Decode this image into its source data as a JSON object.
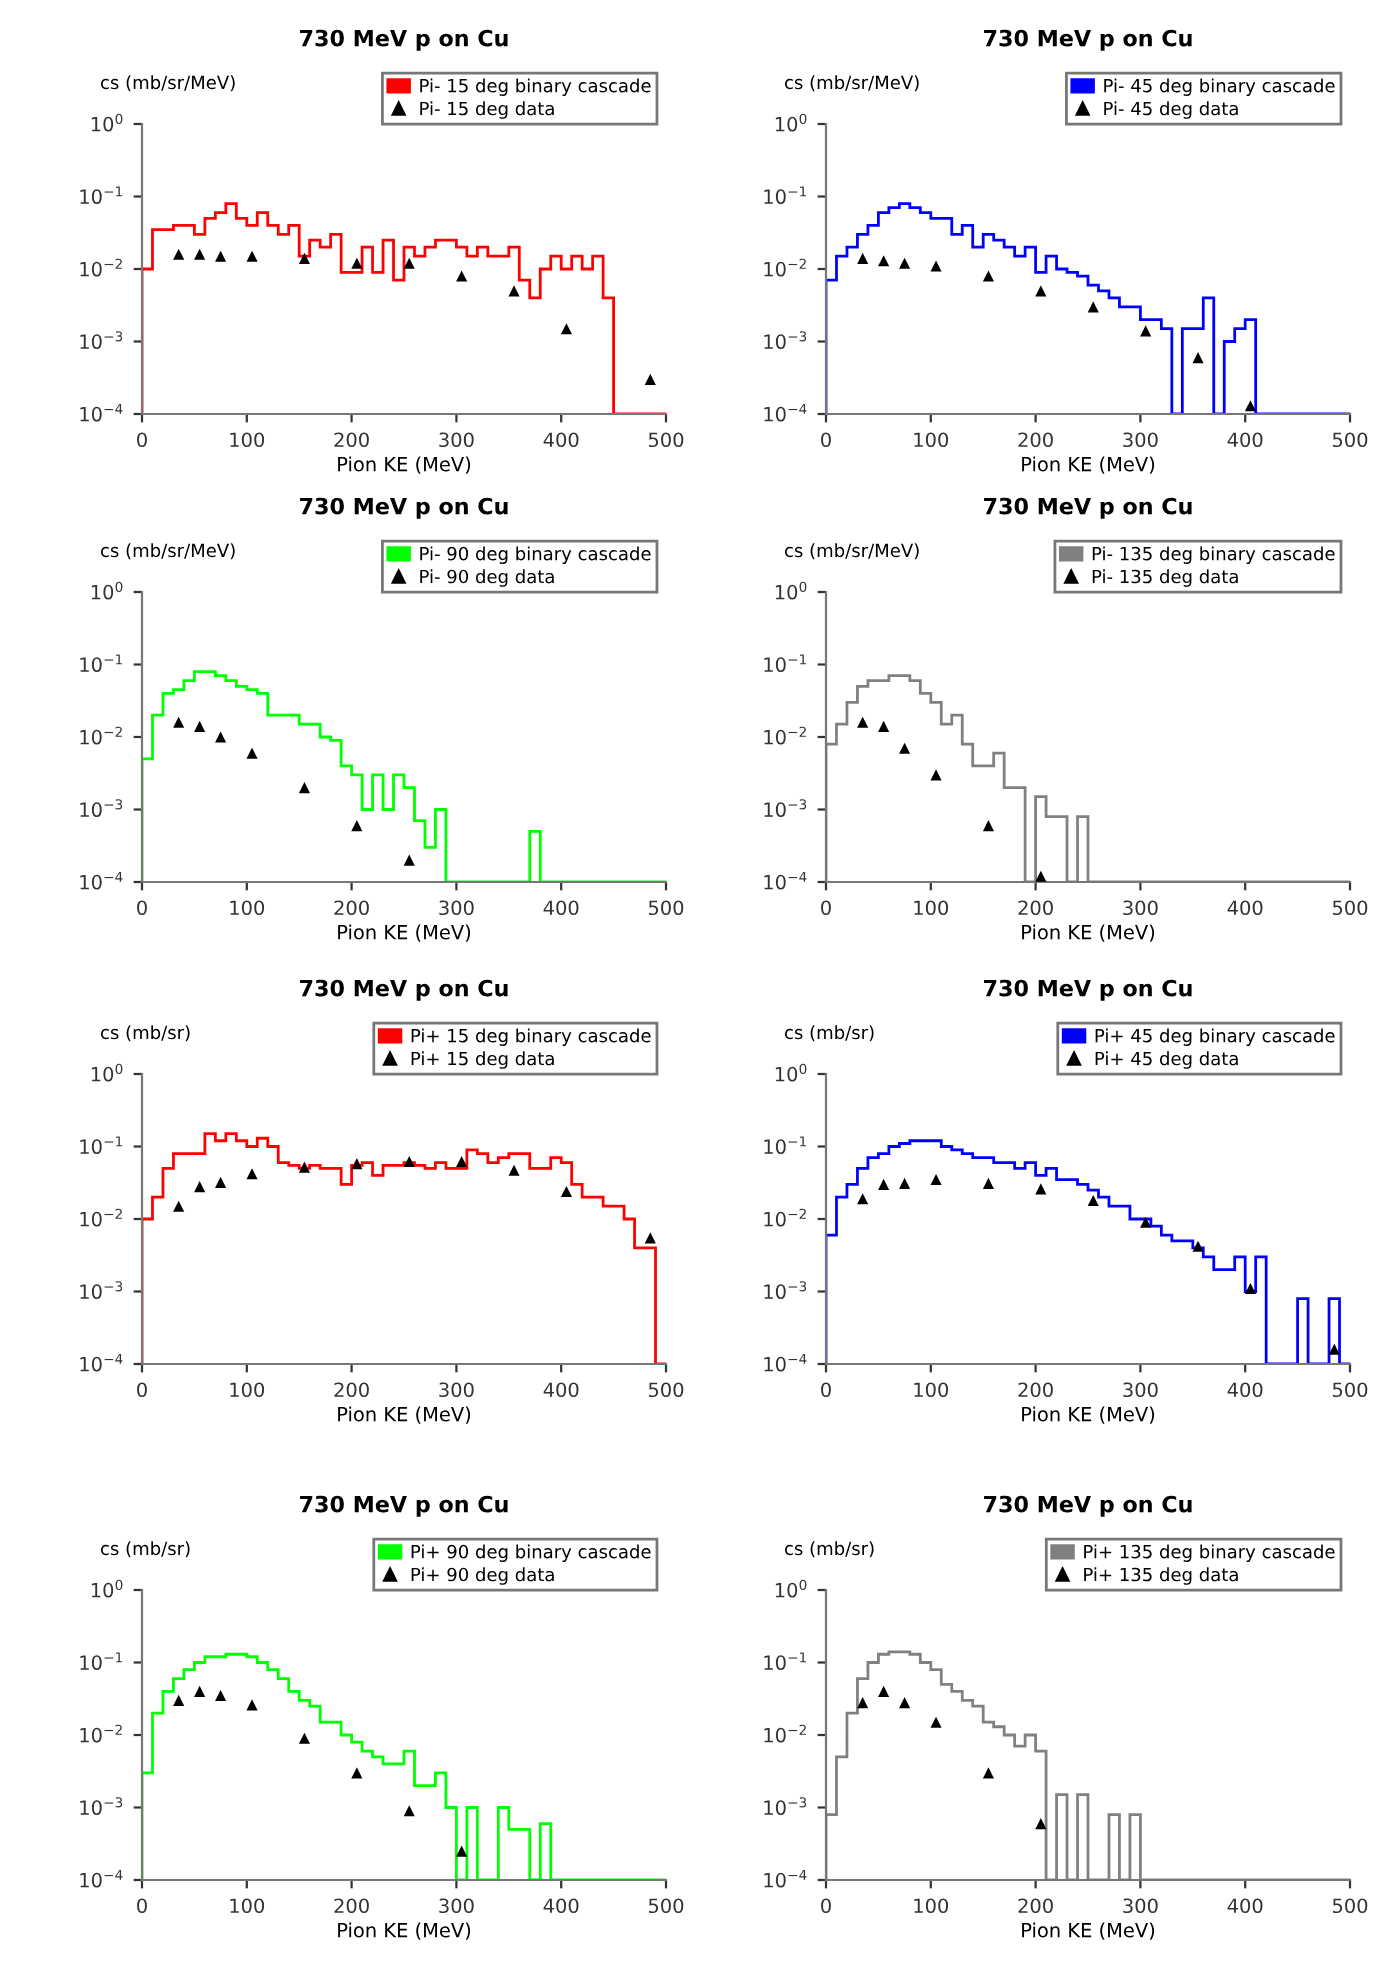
{
  "chart_data": [
    {
      "type": "histogram",
      "title": "730 MeV p on Cu",
      "ylabel": "cs (mb/sr/MeV)",
      "xlabel": "Pion KE (MeV)",
      "log": true,
      "legend": "top right",
      "xlim": [
        0,
        500
      ],
      "xticks": [
        0,
        100,
        200,
        300,
        400,
        500
      ],
      "ylim": [
        0.0001,
        1
      ],
      "yticks": [
        {
          "value": 0.0001,
          "label": "10$^{−4}$"
        },
        {
          "value": 0.001,
          "label": "10$^{−3}$"
        },
        {
          "value": 0.01,
          "label": "10$^{−2}$"
        },
        {
          "value": 0.1,
          "label": "10$^{−1}$"
        },
        {
          "value": 1,
          "label": "10$^{0}$"
        }
      ],
      "bins": [
        0,
        10,
        20,
        30,
        40,
        50,
        60,
        70,
        80,
        90,
        100,
        110,
        120,
        130,
        140,
        150,
        160,
        170,
        180,
        190,
        200,
        210,
        220,
        230,
        240,
        250,
        260,
        270,
        280,
        290,
        300,
        310,
        320,
        330,
        340,
        350,
        360,
        370,
        380,
        390,
        400,
        410,
        420,
        430,
        440,
        450,
        460,
        470,
        480,
        490,
        500
      ],
      "series": [
        {
          "name": "Pi- 15 deg binary cascade",
          "type": "histogram",
          "color": "#ff0000",
          "values": [
            0.01,
            0.035,
            0.035,
            0.04,
            0.04,
            0.03,
            0.05,
            0.06,
            0.08,
            0.05,
            0.04,
            0.06,
            0.04,
            0.03,
            0.04,
            0.015,
            0.025,
            0.02,
            0.03,
            0.009,
            0.009,
            0.02,
            0.009,
            0.025,
            0.007,
            0.02,
            0.015,
            0.02,
            0.025,
            0.025,
            0.02,
            0.015,
            0.02,
            0.015,
            0.015,
            0.02,
            0.007,
            0.004,
            0.01,
            0.015,
            0.01,
            0.015,
            0.01,
            0.015,
            0.004,
            null,
            null,
            null,
            null,
            null
          ]
        },
        {
          "name": "Pi- 15 deg data",
          "type": "scatter",
          "color": "#000000",
          "marker": "triangle",
          "x": [
            35,
            55,
            75,
            105,
            155,
            205,
            255,
            305,
            355,
            405,
            485
          ],
          "values": [
            0.016,
            0.016,
            0.015,
            0.015,
            0.014,
            0.012,
            0.012,
            0.008,
            0.005,
            0.0015,
            0.0003
          ]
        }
      ]
    },
    {
      "type": "histogram",
      "title": "730 MeV p on Cu",
      "ylabel": "cs (mb/sr/MeV)",
      "xlabel": "Pion KE (MeV)",
      "log": true,
      "legend": "top right",
      "xlim": [
        0,
        500
      ],
      "xticks": [
        0,
        100,
        200,
        300,
        400,
        500
      ],
      "ylim": [
        0.0001,
        1
      ],
      "yticks": [
        {
          "value": 0.0001,
          "label": "10$^{−4}$"
        },
        {
          "value": 0.001,
          "label": "10$^{−3}$"
        },
        {
          "value": 0.01,
          "label": "10$^{−2}$"
        },
        {
          "value": 0.1,
          "label": "10$^{−1}$"
        },
        {
          "value": 1,
          "label": "10$^{0}$"
        }
      ],
      "bins": [
        0,
        10,
        20,
        30,
        40,
        50,
        60,
        70,
        80,
        90,
        100,
        110,
        120,
        130,
        140,
        150,
        160,
        170,
        180,
        190,
        200,
        210,
        220,
        230,
        240,
        250,
        260,
        270,
        280,
        290,
        300,
        310,
        320,
        330,
        340,
        350,
        360,
        370,
        380,
        390,
        400,
        410,
        420,
        430,
        440,
        450,
        460,
        470,
        480,
        490,
        500
      ],
      "series": [
        {
          "name": "Pi- 45 deg binary cascade",
          "type": "histogram",
          "color": "#0000ff",
          "values": [
            0.007,
            0.015,
            0.02,
            0.03,
            0.04,
            0.06,
            0.07,
            0.08,
            0.07,
            0.06,
            0.05,
            0.05,
            0.03,
            0.04,
            0.02,
            0.03,
            0.025,
            0.02,
            0.015,
            0.02,
            0.009,
            0.015,
            0.01,
            0.009,
            0.008,
            0.006,
            0.005,
            0.004,
            0.003,
            0.003,
            0.002,
            0.002,
            0.0015,
            null,
            0.0015,
            0.0015,
            0.004,
            null,
            0.001,
            0.0015,
            0.002,
            null,
            null,
            null,
            null,
            null,
            null,
            null,
            null,
            null
          ]
        },
        {
          "name": "Pi- 45 deg data",
          "type": "scatter",
          "color": "#000000",
          "marker": "triangle",
          "x": [
            35,
            55,
            75,
            105,
            155,
            205,
            255,
            305,
            355,
            405
          ],
          "values": [
            0.014,
            0.013,
            0.012,
            0.011,
            0.008,
            0.005,
            0.003,
            0.0014,
            0.0006,
            0.00013
          ]
        }
      ]
    },
    {
      "type": "histogram",
      "title": "730 MeV p on Cu",
      "ylabel": "cs (mb/sr/MeV)",
      "xlabel": "Pion KE (MeV)",
      "log": true,
      "legend": "top right",
      "xlim": [
        0,
        500
      ],
      "xticks": [
        0,
        100,
        200,
        300,
        400,
        500
      ],
      "ylim": [
        0.0001,
        1
      ],
      "yticks": [
        {
          "value": 0.0001,
          "label": "10$^{−4}$"
        },
        {
          "value": 0.001,
          "label": "10$^{−3}$"
        },
        {
          "value": 0.01,
          "label": "10$^{−2}$"
        },
        {
          "value": 0.1,
          "label": "10$^{−1}$"
        },
        {
          "value": 1,
          "label": "10$^{0}$"
        }
      ],
      "bins": [
        0,
        10,
        20,
        30,
        40,
        50,
        60,
        70,
        80,
        90,
        100,
        110,
        120,
        130,
        140,
        150,
        160,
        170,
        180,
        190,
        200,
        210,
        220,
        230,
        240,
        250,
        260,
        270,
        280,
        290,
        300,
        310,
        320,
        330,
        340,
        350,
        360,
        370,
        380,
        390,
        400,
        410,
        420,
        430,
        440,
        450,
        460,
        470,
        480,
        490,
        500
      ],
      "series": [
        {
          "name": "Pi- 90 deg binary cascade",
          "type": "histogram",
          "color": "#00ff00",
          "values": [
            0.005,
            0.02,
            0.04,
            0.045,
            0.06,
            0.08,
            0.08,
            0.07,
            0.06,
            0.05,
            0.045,
            0.04,
            0.02,
            0.02,
            0.02,
            0.015,
            0.015,
            0.01,
            0.009,
            0.004,
            0.003,
            0.001,
            0.003,
            0.001,
            0.003,
            0.002,
            0.0007,
            0.0003,
            0.001,
            null,
            null,
            null,
            null,
            null,
            null,
            null,
            null,
            0.0005,
            null,
            null,
            null,
            null,
            null,
            null,
            null,
            null,
            null,
            null,
            null,
            null
          ]
        },
        {
          "name": "Pi- 90 deg data",
          "type": "scatter",
          "color": "#000000",
          "marker": "triangle",
          "x": [
            35,
            55,
            75,
            105,
            155,
            205,
            255
          ],
          "values": [
            0.016,
            0.014,
            0.01,
            0.006,
            0.002,
            0.0006,
            0.0002
          ]
        }
      ]
    },
    {
      "type": "histogram",
      "title": "730 MeV p on Cu",
      "ylabel": "cs (mb/sr/MeV)",
      "xlabel": "Pion KE (MeV)",
      "log": true,
      "legend": "top right",
      "xlim": [
        0,
        500
      ],
      "xticks": [
        0,
        100,
        200,
        300,
        400,
        500
      ],
      "ylim": [
        0.0001,
        1
      ],
      "yticks": [
        {
          "value": 0.0001,
          "label": "10$^{−4}$"
        },
        {
          "value": 0.001,
          "label": "10$^{−3}$"
        },
        {
          "value": 0.01,
          "label": "10$^{−2}$"
        },
        {
          "value": 0.1,
          "label": "10$^{−1}$"
        },
        {
          "value": 1,
          "label": "10$^{0}$"
        }
      ],
      "bins": [
        0,
        10,
        20,
        30,
        40,
        50,
        60,
        70,
        80,
        90,
        100,
        110,
        120,
        130,
        140,
        150,
        160,
        170,
        180,
        190,
        200,
        210,
        220,
        230,
        240,
        250,
        260,
        270,
        280,
        290,
        300,
        310,
        320,
        330,
        340,
        350,
        360,
        370,
        380,
        390,
        400,
        410,
        420,
        430,
        440,
        450,
        460,
        470,
        480,
        490,
        500
      ],
      "series": [
        {
          "name": "Pi- 135 deg binary cascade",
          "type": "histogram",
          "color": "#808080",
          "values": [
            0.008,
            0.015,
            0.03,
            0.05,
            0.06,
            0.06,
            0.07,
            0.07,
            0.06,
            0.04,
            0.03,
            0.015,
            0.02,
            0.008,
            0.004,
            0.004,
            0.006,
            0.002,
            0.002,
            null,
            0.0015,
            0.0008,
            0.0008,
            null,
            0.0008,
            null,
            null,
            null,
            null,
            null,
            null,
            null,
            null,
            null,
            null,
            null,
            null,
            null,
            null,
            null,
            null,
            null,
            null,
            null,
            null,
            null,
            null,
            null,
            null,
            null
          ]
        },
        {
          "name": "Pi- 135 deg data",
          "type": "scatter",
          "color": "#000000",
          "marker": "triangle",
          "x": [
            35,
            55,
            75,
            105,
            155,
            205
          ],
          "values": [
            0.016,
            0.014,
            0.007,
            0.003,
            0.0006,
            0.00012
          ]
        }
      ]
    },
    {
      "type": "histogram",
      "title": "730 MeV p on Cu",
      "ylabel": "cs (mb/sr)",
      "xlabel": "Pion KE (MeV)",
      "log": true,
      "legend": "top right",
      "xlim": [
        0,
        500
      ],
      "xticks": [
        0,
        100,
        200,
        300,
        400,
        500
      ],
      "ylim": [
        0.0001,
        1
      ],
      "yticks": [
        {
          "value": 0.0001,
          "label": "10$^{−4}$"
        },
        {
          "value": 0.001,
          "label": "10$^{−3}$"
        },
        {
          "value": 0.01,
          "label": "10$^{−2}$"
        },
        {
          "value": 0.1,
          "label": "10$^{−1}$"
        },
        {
          "value": 1,
          "label": "10$^{0}$"
        }
      ],
      "bins": [
        0,
        10,
        20,
        30,
        40,
        50,
        60,
        70,
        80,
        90,
        100,
        110,
        120,
        130,
        140,
        150,
        160,
        170,
        180,
        190,
        200,
        210,
        220,
        230,
        240,
        250,
        260,
        270,
        280,
        290,
        300,
        310,
        320,
        330,
        340,
        350,
        360,
        370,
        380,
        390,
        400,
        410,
        420,
        430,
        440,
        450,
        460,
        470,
        480,
        490,
        500
      ],
      "series": [
        {
          "name": "Pi+ 15 deg binary cascade",
          "type": "histogram",
          "color": "#ff0000",
          "values": [
            0.01,
            0.02,
            0.05,
            0.08,
            0.08,
            0.08,
            0.15,
            0.12,
            0.15,
            0.12,
            0.1,
            0.13,
            0.1,
            0.06,
            0.055,
            0.05,
            0.055,
            0.05,
            0.05,
            0.03,
            0.055,
            0.06,
            0.04,
            0.055,
            0.055,
            0.06,
            0.055,
            0.05,
            0.06,
            0.05,
            0.05,
            0.09,
            0.08,
            0.06,
            0.07,
            0.08,
            0.08,
            0.05,
            0.05,
            0.07,
            0.06,
            0.03,
            0.02,
            0.02,
            0.015,
            0.015,
            0.01,
            0.004,
            0.004,
            null
          ]
        },
        {
          "name": "Pi+ 15 deg data",
          "type": "scatter",
          "color": "#000000",
          "marker": "triangle",
          "x": [
            35,
            55,
            75,
            105,
            155,
            205,
            255,
            305,
            355,
            405,
            485
          ],
          "values": [
            0.015,
            0.028,
            0.032,
            0.042,
            0.052,
            0.058,
            0.062,
            0.062,
            0.047,
            0.024,
            0.0055
          ]
        }
      ]
    },
    {
      "type": "histogram",
      "title": "730 MeV p on Cu",
      "ylabel": "cs (mb/sr)",
      "xlabel": "Pion KE (MeV)",
      "log": true,
      "legend": "top right",
      "xlim": [
        0,
        500
      ],
      "xticks": [
        0,
        100,
        200,
        300,
        400,
        500
      ],
      "ylim": [
        0.0001,
        1
      ],
      "yticks": [
        {
          "value": 0.0001,
          "label": "10$^{−4}$"
        },
        {
          "value": 0.001,
          "label": "10$^{−3}$"
        },
        {
          "value": 0.01,
          "label": "10$^{−2}$"
        },
        {
          "value": 0.1,
          "label": "10$^{−1}$"
        },
        {
          "value": 1,
          "label": "10$^{0}$"
        }
      ],
      "bins": [
        0,
        10,
        20,
        30,
        40,
        50,
        60,
        70,
        80,
        90,
        100,
        110,
        120,
        130,
        140,
        150,
        160,
        170,
        180,
        190,
        200,
        210,
        220,
        230,
        240,
        250,
        260,
        270,
        280,
        290,
        300,
        310,
        320,
        330,
        340,
        350,
        360,
        370,
        380,
        390,
        400,
        410,
        420,
        430,
        440,
        450,
        460,
        470,
        480,
        490,
        500
      ],
      "series": [
        {
          "name": "Pi+ 45 deg binary cascade",
          "type": "histogram",
          "color": "#0000ff",
          "values": [
            0.006,
            0.02,
            0.03,
            0.05,
            0.07,
            0.08,
            0.1,
            0.11,
            0.12,
            0.12,
            0.12,
            0.1,
            0.09,
            0.08,
            0.07,
            0.07,
            0.06,
            0.06,
            0.05,
            0.06,
            0.04,
            0.05,
            0.035,
            0.035,
            0.03,
            0.025,
            0.02,
            0.015,
            0.015,
            0.01,
            0.01,
            0.008,
            0.006,
            0.005,
            0.005,
            0.004,
            0.003,
            0.002,
            0.002,
            0.003,
            0.001,
            0.003,
            null,
            null,
            null,
            0.0008,
            null,
            null,
            0.0008,
            null
          ]
        },
        {
          "name": "Pi+ 45 deg data",
          "type": "scatter",
          "color": "#000000",
          "marker": "triangle",
          "x": [
            35,
            55,
            75,
            105,
            155,
            205,
            255,
            305,
            355,
            405,
            485
          ],
          "values": [
            0.019,
            0.03,
            0.031,
            0.035,
            0.031,
            0.026,
            0.018,
            0.009,
            0.0042,
            0.0011,
            0.00016
          ]
        }
      ]
    },
    {
      "type": "histogram",
      "title": "730 MeV p on Cu",
      "ylabel": "cs (mb/sr)",
      "xlabel": "Pion KE (MeV)",
      "log": true,
      "legend": "top right",
      "xlim": [
        0,
        500
      ],
      "xticks": [
        0,
        100,
        200,
        300,
        400,
        500
      ],
      "ylim": [
        0.0001,
        1
      ],
      "yticks": [
        {
          "value": 0.0001,
          "label": "10$^{−4}$"
        },
        {
          "value": 0.001,
          "label": "10$^{−3}$"
        },
        {
          "value": 0.01,
          "label": "10$^{−2}$"
        },
        {
          "value": 0.1,
          "label": "10$^{−1}$"
        },
        {
          "value": 1,
          "label": "10$^{0}$"
        }
      ],
      "bins": [
        0,
        10,
        20,
        30,
        40,
        50,
        60,
        70,
        80,
        90,
        100,
        110,
        120,
        130,
        140,
        150,
        160,
        170,
        180,
        190,
        200,
        210,
        220,
        230,
        240,
        250,
        260,
        270,
        280,
        290,
        300,
        310,
        320,
        330,
        340,
        350,
        360,
        370,
        380,
        390,
        400,
        410,
        420,
        430,
        440,
        450,
        460,
        470,
        480,
        490,
        500
      ],
      "series": [
        {
          "name": "Pi+ 90 deg binary cascade",
          "type": "histogram",
          "color": "#00ff00",
          "values": [
            0.003,
            0.02,
            0.04,
            0.06,
            0.08,
            0.1,
            0.12,
            0.12,
            0.13,
            0.13,
            0.12,
            0.1,
            0.08,
            0.06,
            0.04,
            0.03,
            0.025,
            0.015,
            0.015,
            0.01,
            0.008,
            0.006,
            0.005,
            0.004,
            0.004,
            0.006,
            0.002,
            0.002,
            0.003,
            0.001,
            null,
            0.001,
            null,
            null,
            0.001,
            0.0005,
            0.0005,
            null,
            0.0006,
            null,
            null,
            null,
            null,
            null,
            null,
            null,
            null,
            null,
            null,
            null
          ]
        },
        {
          "name": "Pi+ 90 deg data",
          "type": "scatter",
          "color": "#000000",
          "marker": "triangle",
          "x": [
            35,
            55,
            75,
            105,
            155,
            205,
            255,
            305
          ],
          "values": [
            0.03,
            0.04,
            0.035,
            0.026,
            0.009,
            0.003,
            0.0009,
            0.00025
          ]
        }
      ]
    },
    {
      "type": "histogram",
      "title": "730 MeV p on Cu",
      "ylabel": "cs (mb/sr)",
      "xlabel": "Pion KE (MeV)",
      "log": true,
      "legend": "top right",
      "xlim": [
        0,
        500
      ],
      "xticks": [
        0,
        100,
        200,
        300,
        400,
        500
      ],
      "ylim": [
        0.0001,
        1
      ],
      "yticks": [
        {
          "value": 0.0001,
          "label": "10$^{−4}$"
        },
        {
          "value": 0.001,
          "label": "10$^{−3}$"
        },
        {
          "value": 0.01,
          "label": "10$^{−2}$"
        },
        {
          "value": 0.1,
          "label": "10$^{−1}$"
        },
        {
          "value": 1,
          "label": "10$^{0}$"
        }
      ],
      "bins": [
        0,
        10,
        20,
        30,
        40,
        50,
        60,
        70,
        80,
        90,
        100,
        110,
        120,
        130,
        140,
        150,
        160,
        170,
        180,
        190,
        200,
        210,
        220,
        230,
        240,
        250,
        260,
        270,
        280,
        290,
        300,
        310,
        320,
        330,
        340,
        350,
        360,
        370,
        380,
        390,
        400,
        410,
        420,
        430,
        440,
        450,
        460,
        470,
        480,
        490,
        500
      ],
      "series": [
        {
          "name": "Pi+ 135 deg binary cascade",
          "type": "histogram",
          "color": "#808080",
          "values": [
            0.0008,
            0.005,
            0.02,
            0.06,
            0.1,
            0.13,
            0.14,
            0.14,
            0.13,
            0.1,
            0.08,
            0.05,
            0.04,
            0.03,
            0.025,
            0.015,
            0.013,
            0.01,
            0.007,
            0.01,
            0.006,
            null,
            0.0015,
            null,
            0.0015,
            null,
            null,
            0.0008,
            null,
            0.0008,
            null,
            null,
            null,
            null,
            null,
            null,
            null,
            null,
            null,
            null,
            null,
            null,
            null,
            null,
            null,
            null,
            null,
            null,
            null,
            null
          ]
        },
        {
          "name": "Pi+ 135 deg data",
          "type": "scatter",
          "color": "#000000",
          "marker": "triangle",
          "x": [
            35,
            55,
            75,
            105,
            155,
            205
          ],
          "values": [
            0.028,
            0.04,
            0.028,
            0.015,
            0.003,
            0.0006
          ]
        }
      ]
    }
  ]
}
